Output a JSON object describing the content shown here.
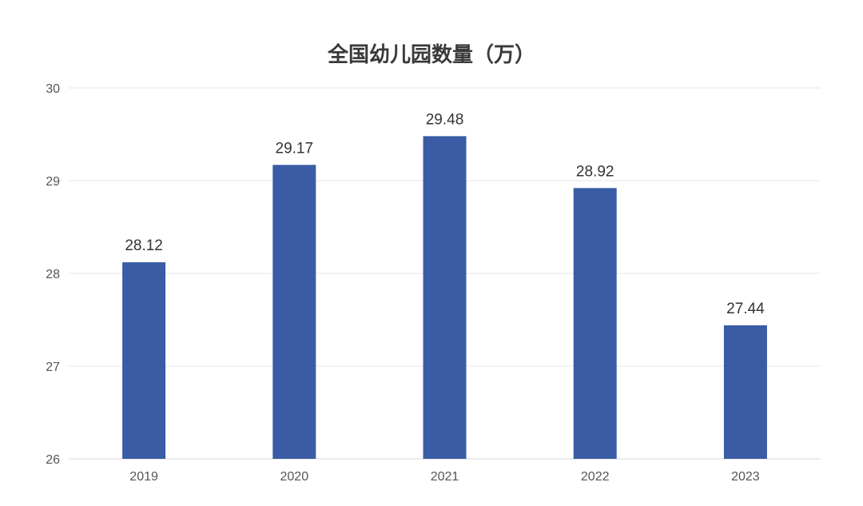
{
  "chart_data": {
    "type": "bar",
    "title": "全国幼儿园数量（万）",
    "categories": [
      "2019",
      "2020",
      "2021",
      "2022",
      "2023"
    ],
    "series": [
      {
        "values": [
          28.12,
          29.17,
          29.48,
          28.92,
          27.44
        ],
        "color": "#3a5ca5"
      }
    ],
    "data_labels": [
      "28.12",
      "29.17",
      "29.48",
      "28.92",
      "27.44"
    ],
    "ylim": [
      26,
      30
    ],
    "yticks": [
      26,
      27,
      28,
      29,
      30
    ],
    "xlabel": "",
    "ylabel": "",
    "grid": true,
    "legend": "none",
    "colors": {
      "bar": "#3a5ca5",
      "grid": "#e6e6e6",
      "axis": "#d9d9d9"
    }
  }
}
